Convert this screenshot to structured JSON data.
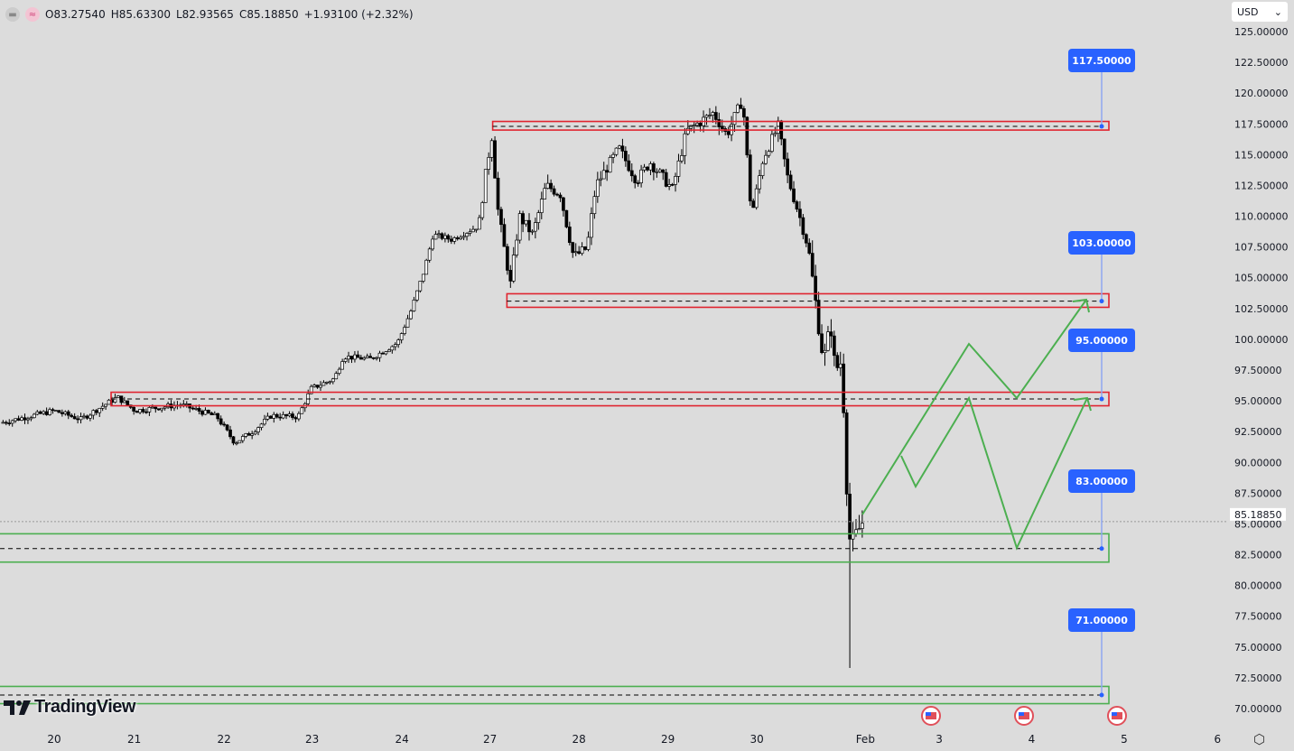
{
  "legend": {
    "open": "O83.27540",
    "high": "H85.63300",
    "low": "L82.93565",
    "close": "C85.18850",
    "change": "+1.93100 (+2.32%)"
  },
  "currency_select": {
    "value": "USD"
  },
  "logo_text": "TradingView",
  "current_price_label": "85.18850",
  "colors": {
    "up": "#ffffff",
    "down": "#000000",
    "resistance": "#e0242f",
    "support": "#4caf50",
    "label": "#2962ff",
    "background": "#dcdcdc"
  },
  "chart_data": {
    "type": "candlestick",
    "title": "",
    "ylim": [
      70,
      125
    ],
    "y_ticks": [
      "125.00000",
      "122.50000",
      "120.00000",
      "117.50000",
      "115.00000",
      "112.50000",
      "110.00000",
      "107.50000",
      "105.00000",
      "102.50000",
      "100.00000",
      "97.50000",
      "95.00000",
      "92.50000",
      "90.00000",
      "87.50000",
      "85.00000",
      "82.50000",
      "80.00000",
      "77.50000",
      "75.00000",
      "72.50000",
      "70.00000"
    ],
    "x_ticks": [
      {
        "label": "20",
        "t": 0
      },
      {
        "label": "21",
        "t": 0.9
      },
      {
        "label": "22",
        "t": 1.91
      },
      {
        "label": "23",
        "t": 2.9
      },
      {
        "label": "24",
        "t": 3.91
      },
      {
        "label": "27",
        "t": 4.9
      },
      {
        "label": "28",
        "t": 5.9
      },
      {
        "label": "29",
        "t": 6.9
      },
      {
        "label": "30",
        "t": 7.9
      },
      {
        "label": "Feb",
        "t": 9.12
      },
      {
        "label": "3",
        "t": 9.95
      },
      {
        "label": "4",
        "t": 10.99
      },
      {
        "label": "5",
        "t": 12.03
      },
      {
        "label": "6",
        "t": 13.08
      }
    ],
    "price_path": [
      [
        -0.61,
        93.2
      ],
      [
        0,
        94.2
      ],
      [
        0.3,
        93.5
      ],
      [
        0.71,
        95.3
      ],
      [
        0.91,
        94.2
      ],
      [
        1.42,
        94.7
      ],
      [
        1.83,
        93.7
      ],
      [
        2.03,
        91.6
      ],
      [
        2.23,
        92.5
      ],
      [
        2.44,
        93.8
      ],
      [
        2.74,
        93.7
      ],
      [
        2.89,
        96.0
      ],
      [
        3.15,
        96.8
      ],
      [
        3.25,
        98.6
      ],
      [
        3.55,
        98.4
      ],
      [
        3.86,
        99.7
      ],
      [
        4.01,
        102.3
      ],
      [
        4.16,
        105.6
      ],
      [
        4.26,
        108.5
      ],
      [
        4.47,
        108.1
      ],
      [
        4.77,
        109.2
      ],
      [
        4.87,
        114.4
      ],
      [
        4.93,
        116.9
      ],
      [
        4.97,
        111.4
      ],
      [
        5.05,
        107.8
      ],
      [
        5.13,
        104.5
      ],
      [
        5.23,
        110.0
      ],
      [
        5.38,
        108.5
      ],
      [
        5.53,
        112.5
      ],
      [
        5.69,
        111.8
      ],
      [
        5.84,
        106.7
      ],
      [
        5.99,
        107.4
      ],
      [
        6.09,
        112.5
      ],
      [
        6.35,
        115.5
      ],
      [
        6.55,
        112.9
      ],
      [
        6.7,
        114.4
      ],
      [
        6.95,
        112.2
      ],
      [
        7.11,
        116.9
      ],
      [
        7.41,
        118.4
      ],
      [
        7.56,
        116.6
      ],
      [
        7.74,
        119.5
      ],
      [
        7.84,
        110.0
      ],
      [
        7.97,
        114.7
      ],
      [
        8.14,
        117.3
      ],
      [
        8.24,
        113.3
      ],
      [
        8.38,
        110.0
      ],
      [
        8.48,
        107.4
      ],
      [
        8.58,
        101.9
      ],
      [
        8.65,
        98.2
      ],
      [
        8.73,
        101.2
      ],
      [
        8.78,
        97.5
      ],
      [
        8.85,
        98.2
      ],
      [
        8.88,
        93.8
      ],
      [
        8.93,
        84.3
      ],
      [
        8.96,
        83.3
      ],
      [
        8.98,
        83.6
      ],
      [
        9.09,
        85.19
      ]
    ],
    "spike_low": {
      "t": 8.94,
      "price": 73.3
    },
    "last_price": 85.1885
  },
  "zones": [
    {
      "name": "resistance-117",
      "type": "resistance",
      "top": 117.7,
      "bottom": 117.0,
      "level": 117.3,
      "t_start": 4.93,
      "label": "117.50000"
    },
    {
      "name": "resistance-103",
      "type": "resistance",
      "top": 103.7,
      "bottom": 102.6,
      "level": 103.1,
      "t_start": 5.09,
      "label": "103.00000"
    },
    {
      "name": "resistance-95",
      "type": "resistance",
      "top": 95.7,
      "bottom": 94.6,
      "level": 95.15,
      "t_start": 0.64,
      "label": "95.00000"
    },
    {
      "name": "support-83",
      "type": "support",
      "top": 84.2,
      "bottom": 81.9,
      "level": 83.0,
      "t_start": -0.7,
      "label": "83.00000"
    },
    {
      "name": "support-71",
      "type": "support",
      "top": 71.8,
      "bottom": 70.4,
      "level": 71.1,
      "t_start": -0.7,
      "label": "71.00000"
    }
  ],
  "events": [
    "us-economic-event",
    "us-economic-event",
    "us-economic-event"
  ]
}
